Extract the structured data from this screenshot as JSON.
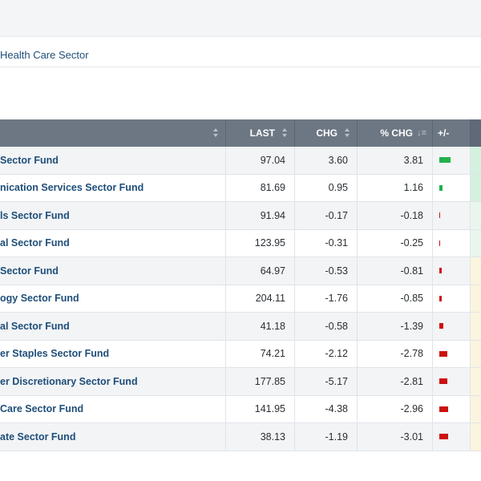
{
  "breadcrumb": "Health Care Sector",
  "table": {
    "columns": {
      "last": "LAST",
      "chg": "CHG",
      "pct": "% CHG",
      "pm": "+/-"
    },
    "rows": [
      {
        "name": "Sector Fund",
        "last": "97.04",
        "chg": "3.60",
        "pct": "3.81",
        "pct_value": 3.81,
        "extra_color": "#d4f0de"
      },
      {
        "name": "nication Services Sector Fund",
        "last": "81.69",
        "chg": "0.95",
        "pct": "1.16",
        "pct_value": 1.16,
        "extra_color": "#d4f0de"
      },
      {
        "name": "ls Sector Fund",
        "last": "91.94",
        "chg": "-0.17",
        "pct": "-0.18",
        "pct_value": -0.18,
        "extra_color": "#e9f6ee"
      },
      {
        "name": "al Sector Fund",
        "last": "123.95",
        "chg": "-0.31",
        "pct": "-0.25",
        "pct_value": -0.25,
        "extra_color": "#e9f6ee"
      },
      {
        "name": " Sector Fund",
        "last": "64.97",
        "chg": "-0.53",
        "pct": "-0.81",
        "pct_value": -0.81,
        "extra_color": "#fbf4de"
      },
      {
        "name": "ogy Sector Fund",
        "last": "204.11",
        "chg": "-1.76",
        "pct": "-0.85",
        "pct_value": -0.85,
        "extra_color": "#fbf4de"
      },
      {
        "name": "al Sector Fund",
        "last": "41.18",
        "chg": "-0.58",
        "pct": "-1.39",
        "pct_value": -1.39,
        "extra_color": "#fbf4de"
      },
      {
        "name": "er Staples Sector Fund",
        "last": "74.21",
        "chg": "-2.12",
        "pct": "-2.78",
        "pct_value": -2.78,
        "extra_color": "#fbf4de"
      },
      {
        "name": "er Discretionary Sector Fund",
        "last": "177.85",
        "chg": "-5.17",
        "pct": "-2.81",
        "pct_value": -2.81,
        "extra_color": "#fbf4de"
      },
      {
        "name": "Care Sector Fund",
        "last": "141.95",
        "chg": "-4.38",
        "pct": "-2.96",
        "pct_value": -2.96,
        "extra_color": "#fbf4de"
      },
      {
        "name": "ate Sector Fund",
        "last": "38.13",
        "chg": "-1.19",
        "pct": "-3.01",
        "pct_value": -3.01,
        "extra_color": "#fbf4de"
      }
    ]
  },
  "colors": {
    "header_bg": "#6d7784",
    "link": "#1f4e79",
    "positive_bar": "#22b14c",
    "negative_bar": "#cc1111"
  }
}
